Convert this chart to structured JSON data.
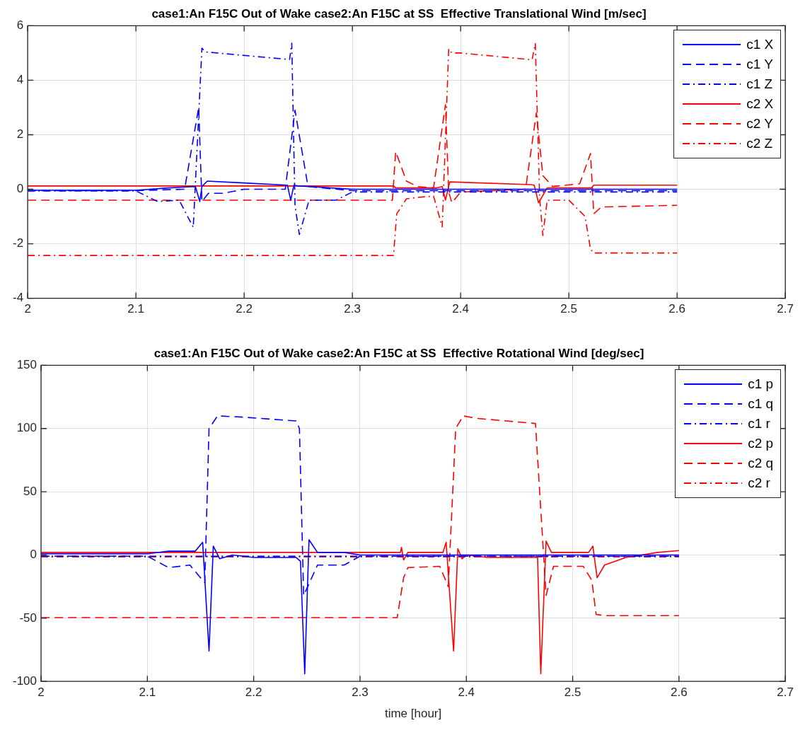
{
  "chart_data": [
    {
      "type": "line",
      "title": "case1:An F15C Out of Wake case2:An F15C at SS  Effective Translational Wind [m/sec]",
      "xlim": [
        2,
        2.7
      ],
      "xticks": [
        2,
        2.1,
        2.2,
        2.3,
        2.4,
        2.5,
        2.6,
        2.7
      ],
      "ylim": [
        -4,
        6
      ],
      "yticks": [
        -4,
        -2,
        0,
        2,
        4,
        6
      ],
      "grid": true,
      "legend": "top right",
      "series": [
        {
          "name": "c1 X",
          "color": "#0000ff",
          "line_style": "solid",
          "x": [
            2,
            2.1,
            2.13,
            2.155,
            2.159,
            2.161,
            2.166,
            2.2,
            2.24,
            2.243,
            2.246,
            2.25,
            2.26,
            2.3,
            2.6
          ],
          "values": [
            -0.04,
            -0.04,
            0.05,
            0.1,
            -0.45,
            0.1,
            0.3,
            0.23,
            0.15,
            -0.4,
            0.15,
            0.12,
            0.1,
            0,
            0
          ]
        },
        {
          "name": "c1 Y",
          "color": "#0000ff",
          "line_style": "dashed",
          "x": [
            2,
            2.1,
            2.145,
            2.158,
            2.161,
            2.167,
            2.18,
            2.2,
            2.238,
            2.247,
            2.259,
            2.3,
            2.6
          ],
          "values": [
            -0.05,
            -0.05,
            0,
            3,
            -0.45,
            -0.15,
            -0.15,
            0,
            0,
            2.9,
            0.1,
            -0.05,
            -0.05
          ]
        },
        {
          "name": "c1 Z",
          "color": "#0000ff",
          "line_style": "dashdot",
          "x": [
            2,
            2.1,
            2.12,
            2.14,
            2.153,
            2.161,
            2.164,
            2.242,
            2.244,
            2.247,
            2.251,
            2.26,
            2.285,
            2.3,
            2.6
          ],
          "values": [
            -0.06,
            -0.06,
            -0.45,
            -0.4,
            -1.4,
            5.18,
            5.04,
            4.76,
            5.36,
            -0.6,
            -1.66,
            -0.4,
            -0.4,
            -0.1,
            -0.1
          ]
        },
        {
          "name": "c2 X",
          "color": "#ff0000",
          "line_style": "solid",
          "x": [
            2,
            2.338,
            2.34,
            2.35,
            2.378,
            2.383,
            2.386,
            2.39,
            2.465,
            2.468,
            2.472,
            2.48,
            2.515,
            2.521,
            2.523,
            2.6
          ],
          "values": [
            0.12,
            0.12,
            0.05,
            0.05,
            0.05,
            0.1,
            -0.4,
            0.27,
            0.17,
            0.15,
            -0.5,
            0.05,
            0.05,
            0.05,
            0.15,
            0.15
          ]
        },
        {
          "name": "c2 Y",
          "color": "#ff0000",
          "line_style": "dashed",
          "x": [
            2,
            2.337,
            2.34,
            2.35,
            2.36,
            2.375,
            2.386,
            2.389,
            2.392,
            2.4,
            2.46,
            2.47,
            2.476,
            2.485,
            2.51,
            2.52,
            2.523,
            2.53,
            2.6
          ],
          "values": [
            -0.4,
            -0.4,
            1.38,
            0.3,
            0.1,
            0.05,
            3.1,
            -0.1,
            -0.5,
            -0.1,
            0,
            2.8,
            0.5,
            0.1,
            0.2,
            1.31,
            -0.9,
            -0.65,
            -0.59
          ]
        },
        {
          "name": "c2 Z",
          "color": "#ff0000",
          "line_style": "dashdot",
          "x": [
            2,
            2.338,
            2.341,
            2.35,
            2.36,
            2.375,
            2.383,
            2.389,
            2.392,
            2.4,
            2.466,
            2.469,
            2.473,
            2.476,
            2.48,
            2.5,
            2.515,
            2.52,
            2.523,
            2.53,
            2.6
          ],
          "values": [
            -2.43,
            -2.43,
            -0.9,
            -0.35,
            -0.3,
            -0.25,
            -1.38,
            5.15,
            5.0,
            5.0,
            4.75,
            5.35,
            -0.3,
            -1.7,
            -0.4,
            -0.4,
            -1.0,
            -2.2,
            -2.34,
            -2.34,
            -2.34
          ]
        }
      ]
    },
    {
      "type": "line",
      "title": "case1:An F15C Out of Wake case2:An F15C at SS  Effective Rotational Wind [deg/sec]",
      "xlabel": "time [hour]",
      "xlim": [
        2,
        2.7
      ],
      "xticks": [
        2,
        2.1,
        2.2,
        2.3,
        2.4,
        2.5,
        2.6,
        2.7
      ],
      "ylim": [
        -100,
        150
      ],
      "yticks": [
        -100,
        -50,
        0,
        50,
        100,
        150
      ],
      "grid": true,
      "legend": "top right",
      "series": [
        {
          "name": "c1 p",
          "color": "#0000ff",
          "line_style": "solid",
          "x": [
            2,
            2.1,
            2.12,
            2.145,
            2.152,
            2.158,
            2.162,
            2.168,
            2.18,
            2.2,
            2.24,
            2.244,
            2.248,
            2.252,
            2.26,
            2.285,
            2.3,
            2.6
          ],
          "values": [
            1,
            1,
            3,
            3,
            10,
            -76,
            7,
            -3,
            0,
            -2,
            -2,
            -5,
            -94,
            12,
            2,
            2,
            0,
            0
          ]
        },
        {
          "name": "c1 q",
          "color": "#0000ff",
          "line_style": "dashed",
          "x": [
            2,
            2.1,
            2.12,
            2.14,
            2.154,
            2.158,
            2.166,
            2.19,
            2.24,
            2.243,
            2.247,
            2.26,
            2.285,
            2.3,
            2.6
          ],
          "values": [
            -1,
            -1,
            -10,
            -8,
            -22,
            100,
            110,
            109,
            106,
            100,
            -32,
            -8,
            -8,
            -1,
            -1
          ]
        },
        {
          "name": "c1 r",
          "color": "#0000ff",
          "line_style": "dashdot",
          "x": [
            2,
            2.6
          ],
          "values": [
            -1,
            -1
          ]
        },
        {
          "name": "c2 p",
          "color": "#ff0000",
          "line_style": "solid",
          "x": [
            2,
            2.338,
            2.339,
            2.341,
            2.345,
            2.378,
            2.381,
            2.388,
            2.392,
            2.396,
            2.4,
            2.42,
            2.467,
            2.47,
            2.475,
            2.48,
            2.515,
            2.519,
            2.523,
            2.53,
            2.55,
            2.58,
            2.6
          ],
          "values": [
            2,
            2,
            6,
            -4,
            2,
            2,
            10,
            -76,
            5,
            -3,
            0,
            -2,
            -2,
            -94,
            11,
            2,
            2,
            7,
            -18,
            -8,
            -2,
            2,
            3.5
          ]
        },
        {
          "name": "c2 q",
          "color": "#ff0000",
          "line_style": "dashed",
          "x": [
            2,
            2.335,
            2.341,
            2.345,
            2.375,
            2.383,
            2.39,
            2.397,
            2.41,
            2.465,
            2.475,
            2.482,
            2.51,
            2.518,
            2.522,
            2.53,
            2.6
          ],
          "values": [
            -49.5,
            -49.5,
            -18,
            -10,
            -9,
            -25,
            100,
            110,
            108,
            104,
            -32,
            -9,
            -9,
            -20,
            -47,
            -48,
            -48
          ]
        },
        {
          "name": "c2 r",
          "color": "#ff0000",
          "line_style": "dashdot",
          "x": [
            2,
            2.6
          ],
          "values": [
            -1.5,
            -1.5
          ]
        }
      ]
    }
  ]
}
